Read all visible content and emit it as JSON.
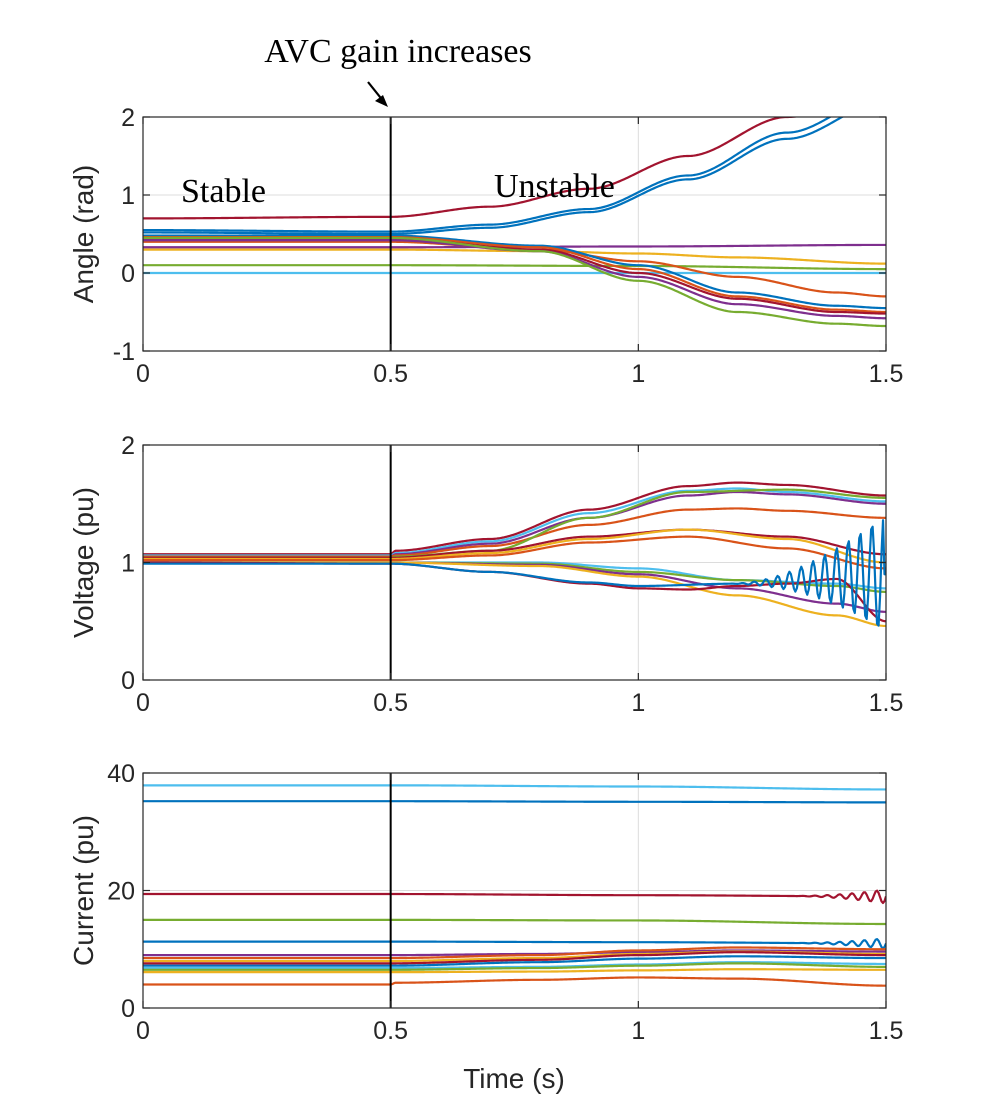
{
  "annotations": {
    "event": "AVC gain increases",
    "stable": "Stable",
    "unstable": "Unstable"
  },
  "shared_xlabel": "Time (s)",
  "chart_data": [
    {
      "type": "line",
      "ylabel": "Angle (rad)",
      "xlim": [
        0,
        1.5
      ],
      "ylim": [
        -1,
        2
      ],
      "xticks": [
        "0",
        "0.5",
        "1",
        "1.5"
      ],
      "yticks": [
        "-1",
        "0",
        "1",
        "2"
      ],
      "grid": true,
      "event_x": 0.5,
      "series": [
        {
          "color": "#A2142F",
          "x": [
            0,
            0.5,
            0.7,
            0.9,
            1.1,
            1.3,
            1.5
          ],
          "y": [
            0.7,
            0.72,
            0.85,
            1.08,
            1.5,
            2.0,
            2.3
          ]
        },
        {
          "color": "#0072BD",
          "x": [
            0,
            0.5,
            0.7,
            0.9,
            1.1,
            1.3,
            1.5
          ],
          "y": [
            0.55,
            0.53,
            0.62,
            0.82,
            1.25,
            1.8,
            2.3
          ]
        },
        {
          "color": "#0072BD",
          "x": [
            0,
            0.5,
            0.7,
            0.9,
            1.1,
            1.3,
            1.5
          ],
          "y": [
            0.52,
            0.5,
            0.58,
            0.78,
            1.2,
            1.72,
            2.2
          ]
        },
        {
          "color": "#7E2F8E",
          "x": [
            0,
            0.5,
            1.0,
            1.5
          ],
          "y": [
            0.33,
            0.33,
            0.34,
            0.36
          ]
        },
        {
          "color": "#EDB120",
          "x": [
            0,
            0.5,
            0.8,
            1.0,
            1.2,
            1.5
          ],
          "y": [
            0.3,
            0.3,
            0.28,
            0.25,
            0.2,
            0.12
          ]
        },
        {
          "color": "#77AC30",
          "x": [
            0,
            0.5,
            1.0,
            1.5
          ],
          "y": [
            0.1,
            0.1,
            0.09,
            0.05
          ]
        },
        {
          "color": "#4DBEEE",
          "x": [
            0,
            0.5,
            1.0,
            1.5
          ],
          "y": [
            0.0,
            0.0,
            0.0,
            0.0
          ]
        },
        {
          "color": "#D95319",
          "x": [
            0,
            0.5,
            0.8,
            1.0,
            1.2,
            1.4,
            1.5
          ],
          "y": [
            0.4,
            0.4,
            0.3,
            0.15,
            -0.05,
            -0.25,
            -0.3
          ]
        },
        {
          "color": "#0072BD",
          "x": [
            0,
            0.5,
            0.8,
            1.0,
            1.2,
            1.4,
            1.5
          ],
          "y": [
            0.48,
            0.48,
            0.35,
            0.1,
            -0.25,
            -0.42,
            -0.45
          ]
        },
        {
          "color": "#D95319",
          "x": [
            0,
            0.5,
            0.8,
            1.0,
            1.2,
            1.4,
            1.5
          ],
          "y": [
            0.46,
            0.46,
            0.33,
            0.05,
            -0.3,
            -0.47,
            -0.5
          ]
        },
        {
          "color": "#A2142F",
          "x": [
            0,
            0.5,
            0.8,
            1.0,
            1.2,
            1.4,
            1.5
          ],
          "y": [
            0.44,
            0.44,
            0.3,
            0.0,
            -0.33,
            -0.5,
            -0.52
          ]
        },
        {
          "color": "#7E2F8E",
          "x": [
            0,
            0.5,
            0.8,
            1.0,
            1.2,
            1.4,
            1.5
          ],
          "y": [
            0.42,
            0.42,
            0.28,
            -0.05,
            -0.4,
            -0.55,
            -0.58
          ]
        },
        {
          "color": "#77AC30",
          "x": [
            0,
            0.5,
            0.8,
            1.0,
            1.2,
            1.4,
            1.5
          ],
          "y": [
            0.45,
            0.45,
            0.28,
            -0.1,
            -0.5,
            -0.65,
            -0.68
          ]
        }
      ]
    },
    {
      "type": "line",
      "ylabel": "Voltage (pu)",
      "xlim": [
        0,
        1.5
      ],
      "ylim": [
        0,
        2
      ],
      "xticks": [
        "0",
        "0.5",
        "1",
        "1.5"
      ],
      "yticks": [
        "0",
        "1",
        "2"
      ],
      "grid": true,
      "event_x": 0.5,
      "series": [
        {
          "color": "#A2142F",
          "x": [
            0,
            0.5,
            0.51,
            0.7,
            0.9,
            1.1,
            1.2,
            1.3,
            1.5
          ],
          "y": [
            1.07,
            1.07,
            1.1,
            1.2,
            1.45,
            1.65,
            1.68,
            1.66,
            1.57
          ]
        },
        {
          "color": "#4DBEEE",
          "x": [
            0,
            0.5,
            0.51,
            0.7,
            0.9,
            1.1,
            1.2,
            1.3,
            1.5
          ],
          "y": [
            1.06,
            1.06,
            1.08,
            1.18,
            1.42,
            1.61,
            1.63,
            1.6,
            1.52
          ]
        },
        {
          "color": "#7E2F8E",
          "x": [
            0,
            0.5,
            0.51,
            0.7,
            0.9,
            1.1,
            1.2,
            1.3,
            1.5
          ],
          "y": [
            1.05,
            1.05,
            1.07,
            1.16,
            1.38,
            1.57,
            1.6,
            1.58,
            1.5
          ]
        },
        {
          "color": "#D95319",
          "x": [
            0,
            0.5,
            0.51,
            0.7,
            0.9,
            1.1,
            1.2,
            1.3,
            1.5
          ],
          "y": [
            1.05,
            1.05,
            1.06,
            1.14,
            1.32,
            1.45,
            1.46,
            1.44,
            1.38
          ]
        },
        {
          "color": "#77AC30",
          "x": [
            0,
            0.5,
            0.51,
            0.7,
            0.9,
            1.1,
            1.3,
            1.5
          ],
          "y": [
            1.04,
            1.04,
            1.05,
            1.1,
            1.38,
            1.6,
            1.62,
            1.55
          ]
        },
        {
          "color": "#A2142F",
          "x": [
            0,
            0.5,
            0.7,
            0.9,
            1.1,
            1.3,
            1.5
          ],
          "y": [
            1.04,
            1.04,
            1.1,
            1.22,
            1.28,
            1.22,
            1.07
          ]
        },
        {
          "color": "#EDB120",
          "x": [
            0,
            0.5,
            0.7,
            0.9,
            1.1,
            1.3,
            1.5
          ],
          "y": [
            1.03,
            1.03,
            1.08,
            1.2,
            1.28,
            1.2,
            1.0
          ]
        },
        {
          "color": "#D95319",
          "x": [
            0,
            0.5,
            0.7,
            0.9,
            1.1,
            1.3,
            1.5
          ],
          "y": [
            1.02,
            1.02,
            1.06,
            1.17,
            1.22,
            1.12,
            0.95
          ]
        },
        {
          "color": "#4DBEEE",
          "x": [
            0,
            0.5,
            0.8,
            1.0,
            1.2,
            1.4,
            1.5
          ],
          "y": [
            1.0,
            1.0,
            1.0,
            0.95,
            0.85,
            0.82,
            0.78
          ]
        },
        {
          "color": "#77AC30",
          "x": [
            0,
            0.5,
            0.8,
            1.0,
            1.2,
            1.4,
            1.5
          ],
          "y": [
            1.0,
            1.0,
            0.99,
            0.92,
            0.85,
            0.8,
            0.75
          ]
        },
        {
          "color": "#7E2F8E",
          "x": [
            0,
            0.5,
            0.8,
            1.0,
            1.2,
            1.4,
            1.5
          ],
          "y": [
            1.0,
            1.0,
            0.98,
            0.9,
            0.78,
            0.65,
            0.58
          ]
        },
        {
          "color": "#EDB120",
          "x": [
            0,
            0.5,
            0.8,
            1.0,
            1.2,
            1.4,
            1.5
          ],
          "y": [
            1.0,
            1.0,
            0.97,
            0.88,
            0.72,
            0.55,
            0.46
          ]
        },
        {
          "color": "#A2142F",
          "x": [
            0,
            0.5,
            0.7,
            0.9,
            1.0,
            1.1,
            1.2,
            1.3,
            1.4,
            1.5
          ],
          "y": [
            1.0,
            0.99,
            0.92,
            0.82,
            0.78,
            0.77,
            0.8,
            0.82,
            0.86,
            0.5
          ]
        },
        {
          "color": "#0072BD",
          "x": [
            0,
            0.5,
            0.7,
            0.9,
            1.0,
            1.2,
            1.5
          ],
          "y": [
            0.99,
            0.99,
            0.92,
            0.83,
            0.8,
            0.82,
            0.9
          ],
          "oscillation": {
            "start": 1.18,
            "end": 1.495,
            "freq": 42,
            "amp_max": 0.5
          }
        }
      ]
    },
    {
      "type": "line",
      "ylabel": "Current (pu)",
      "xlabel": "Time (s)",
      "xlim": [
        0,
        1.5
      ],
      "ylim": [
        0,
        40
      ],
      "xticks": [
        "0",
        "0.5",
        "1",
        "1.5"
      ],
      "yticks": [
        "0",
        "20",
        "40"
      ],
      "grid": true,
      "event_x": 0.5,
      "series": [
        {
          "color": "#4DBEEE",
          "x": [
            0,
            0.5,
            1.0,
            1.5
          ],
          "y": [
            37.9,
            37.9,
            37.7,
            37.2
          ]
        },
        {
          "color": "#0072BD",
          "x": [
            0,
            0.5,
            1.0,
            1.5
          ],
          "y": [
            35.2,
            35.2,
            35.1,
            35.0
          ]
        },
        {
          "color": "#A2142F",
          "x": [
            0,
            0.5,
            1.0,
            1.5
          ],
          "y": [
            19.4,
            19.4,
            19.2,
            19.0
          ],
          "oscillation": {
            "start": 1.3,
            "end": 1.5,
            "freq": 40,
            "amp_max": 1.2
          }
        },
        {
          "color": "#77AC30",
          "x": [
            0,
            0.5,
            1.0,
            1.5
          ],
          "y": [
            15.0,
            15.0,
            14.9,
            14.3
          ]
        },
        {
          "color": "#0072BD",
          "x": [
            0,
            0.5,
            1.0,
            1.5
          ],
          "y": [
            11.3,
            11.3,
            11.2,
            11.0
          ],
          "oscillation": {
            "start": 1.3,
            "end": 1.5,
            "freq": 40,
            "amp_max": 0.9
          }
        },
        {
          "color": "#7E2F8E",
          "x": [
            0,
            0.5,
            0.8,
            1.0,
            1.2,
            1.5
          ],
          "y": [
            9.0,
            9.0,
            9.2,
            9.5,
            9.8,
            9.6
          ]
        },
        {
          "color": "#D95319",
          "x": [
            0,
            0.5,
            0.8,
            1.0,
            1.2,
            1.5
          ],
          "y": [
            8.5,
            8.5,
            9.0,
            9.8,
            10.3,
            10.0
          ]
        },
        {
          "color": "#EDB120",
          "x": [
            0,
            0.5,
            0.8,
            1.0,
            1.2,
            1.5
          ],
          "y": [
            8.0,
            8.0,
            8.5,
            9.2,
            9.6,
            9.2
          ]
        },
        {
          "color": "#A2142F",
          "x": [
            0,
            0.5,
            0.8,
            1.0,
            1.2,
            1.5
          ],
          "y": [
            7.6,
            7.6,
            8.2,
            9.0,
            9.5,
            9.0
          ]
        },
        {
          "color": "#0072BD",
          "x": [
            0,
            0.5,
            0.8,
            1.0,
            1.2,
            1.5
          ],
          "y": [
            7.2,
            7.2,
            7.8,
            8.4,
            8.8,
            8.5
          ]
        },
        {
          "color": "#4DBEEE",
          "x": [
            0,
            0.5,
            0.8,
            1.0,
            1.2,
            1.5
          ],
          "y": [
            6.8,
            6.8,
            7.0,
            7.4,
            7.8,
            7.5
          ]
        },
        {
          "color": "#77AC30",
          "x": [
            0,
            0.5,
            0.8,
            1.0,
            1.2,
            1.5
          ],
          "y": [
            6.5,
            6.5,
            6.8,
            7.2,
            7.6,
            7.0
          ]
        },
        {
          "color": "#EDB120",
          "x": [
            0,
            0.5,
            0.8,
            1.0,
            1.2,
            1.5
          ],
          "y": [
            6.1,
            6.1,
            6.2,
            6.4,
            6.6,
            6.5
          ]
        },
        {
          "color": "#D95319",
          "x": [
            0,
            0.5,
            0.51,
            0.8,
            1.0,
            1.2,
            1.5
          ],
          "y": [
            4.0,
            4.0,
            4.3,
            4.8,
            5.2,
            5.0,
            3.8
          ]
        }
      ]
    }
  ]
}
